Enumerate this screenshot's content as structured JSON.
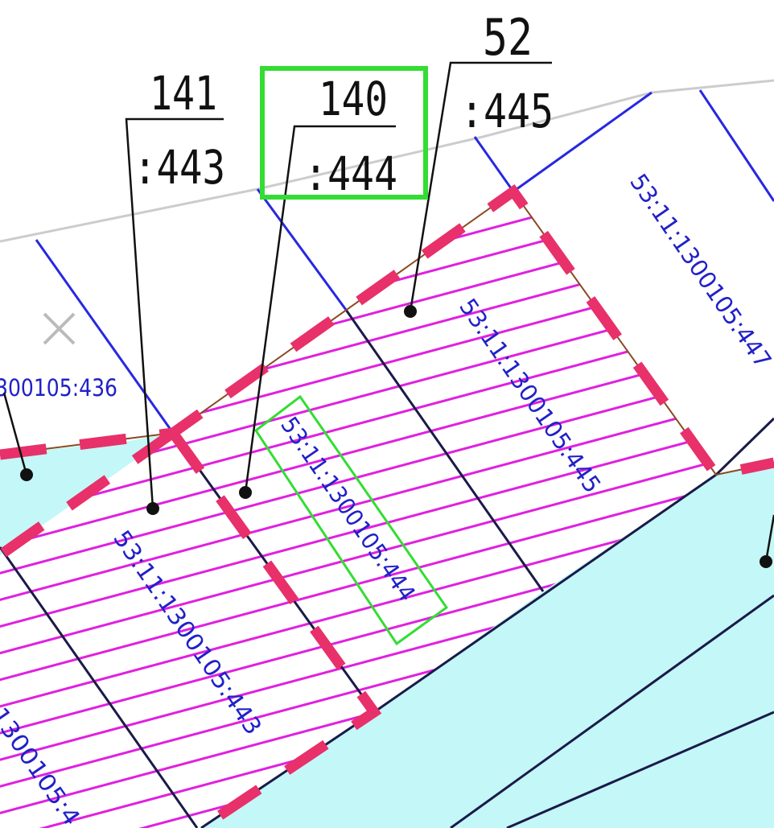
{
  "colors": {
    "background": "#ffffff",
    "road_fill": "#c4f7f7",
    "hatch_line": "#e020e0",
    "boundary_dashed": "#e8306a",
    "boundary_thin": "#8a4a20",
    "parcel_line_dark": "#1a1a4a",
    "parcel_line_blue": "#2828e0",
    "cadastral_label": "#2020c8",
    "highlight": "#33dd33",
    "callout": "#111111",
    "street_line": "#cccccc",
    "cross_mark": "#bbbbbb"
  },
  "callouts": [
    {
      "id": "443",
      "number": "141",
      "parcel": ":443"
    },
    {
      "id": "444",
      "number": "140",
      "parcel": ":444",
      "highlighted": true
    },
    {
      "id": "445",
      "number": "52",
      "parcel": ":445"
    }
  ],
  "parcel_labels": {
    "p436": "300105:436",
    "p443": "53:11:1300105:443",
    "p444": "53:11:1300105:444",
    "p445": "53:11:1300105:445",
    "p447": "53:11:1300105:447",
    "p_left": "1300105:4"
  }
}
